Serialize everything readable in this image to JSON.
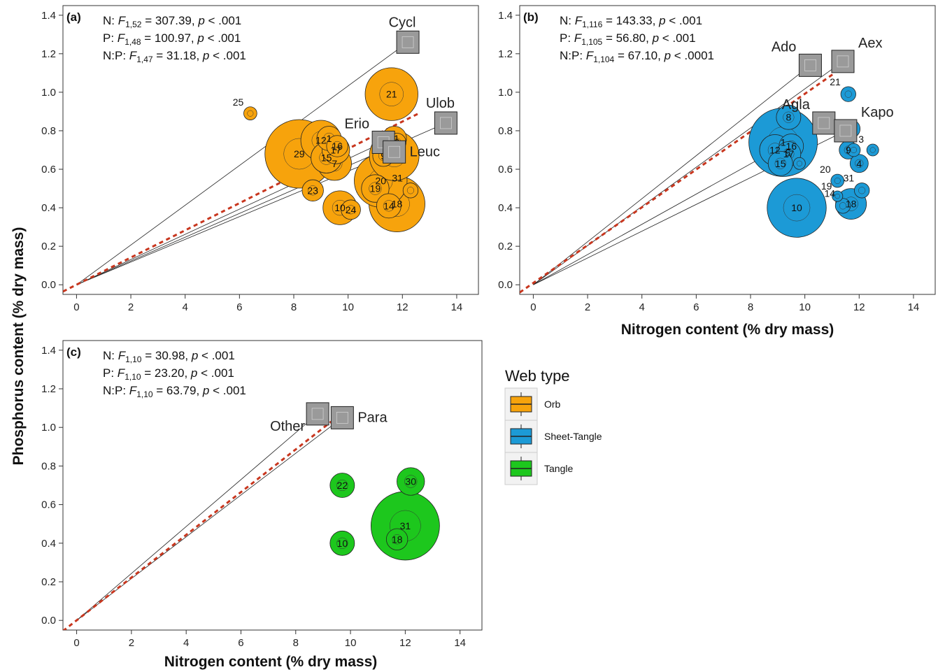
{
  "colors": {
    "orb": "#F7A30C",
    "sheet_tangle": "#1C9AD6",
    "tangle": "#1DC71D",
    "stoich_line": "#C8361E",
    "taxon_box": "#9A9A9A",
    "stroke": "#222222"
  },
  "axis_titles": {
    "y": "Phosphorus content (% dry mass)",
    "x": "Nitrogen content (% dry mass)"
  },
  "legend": {
    "title": "Web type",
    "items": [
      {
        "label": "Orb",
        "color_key": "orb"
      },
      {
        "label": "Sheet-Tangle",
        "color_key": "sheet_tangle"
      },
      {
        "label": "Tangle",
        "color_key": "tangle"
      }
    ]
  },
  "chart_data": [
    {
      "panel": "(a)",
      "type": "scatter",
      "web_type": "Orb",
      "color_key": "orb",
      "xlabel": "",
      "ylabel": "Phosphorus content (% dry mass)",
      "xlim": [
        -0.5,
        14.8
      ],
      "ylim": [
        -0.05,
        1.45
      ],
      "xticks": [
        0,
        2,
        4,
        6,
        8,
        10,
        12,
        14
      ],
      "yticks": [
        0.0,
        0.2,
        0.4,
        0.6,
        0.8,
        1.0,
        1.2,
        1.4
      ],
      "stats": [
        {
          "prefix": "N: ",
          "df": "1,52",
          "value": "307.39",
          "p": "< .001"
        },
        {
          "prefix": "P: ",
          "df": "1,48",
          "value": "100.97",
          "p": "< .001"
        },
        {
          "prefix": "N:P: ",
          "df": "1,47",
          "value": "31.18",
          "p": "< .001"
        }
      ],
      "stoich_line": {
        "x": [
          -0.5,
          12.6
        ],
        "y": [
          -0.035,
          0.89
        ]
      },
      "taxa": [
        {
          "label": "Cycl",
          "x": 12.2,
          "y": 1.26,
          "label_pos": "above"
        },
        {
          "label": "Ulob",
          "x": 13.6,
          "y": 0.84,
          "label_pos": "above"
        },
        {
          "label": "Erio",
          "x": 11.3,
          "y": 0.74,
          "label_pos": "above-left"
        },
        {
          "label": "Leuc",
          "x": 11.7,
          "y": 0.69,
          "label_pos": "right"
        }
      ],
      "points": [
        {
          "id": "25",
          "x": 6.4,
          "y": 0.89,
          "size": 0.12
        },
        {
          "id": "21",
          "x": 11.6,
          "y": 0.99,
          "size": 0.75
        },
        {
          "id": "29",
          "x": 8.2,
          "y": 0.68,
          "size": 1.0
        },
        {
          "id": "12",
          "x": 9.0,
          "y": 0.75,
          "size": 0.55
        },
        {
          "id": "1",
          "x": 9.3,
          "y": 0.76,
          "size": 0.3
        },
        {
          "id": "16",
          "x": 9.6,
          "y": 0.72,
          "size": 0.25
        },
        {
          "id": "17",
          "x": 9.55,
          "y": 0.7,
          "size": 0.35
        },
        {
          "id": "15",
          "x": 9.2,
          "y": 0.66,
          "size": 0.4
        },
        {
          "id": "7",
          "x": 9.5,
          "y": 0.63,
          "size": 0.45
        },
        {
          "id": "11",
          "x": 11.7,
          "y": 0.76,
          "size": 0.3
        },
        {
          "id": "3",
          "x": 11.8,
          "y": 0.74,
          "size": 0.2
        },
        {
          "id": "9",
          "x": 11.3,
          "y": 0.67,
          "size": 0.25
        },
        {
          "id": "4",
          "x": 11.7,
          "y": 0.67,
          "size": 0.7
        },
        {
          "id": "20",
          "x": 11.2,
          "y": 0.54,
          "size": 0.75
        },
        {
          "id": "19",
          "x": 11.0,
          "y": 0.5,
          "size": 0.35
        },
        {
          "id": "31",
          "x": 12.3,
          "y": 0.49,
          "size": 0.15
        },
        {
          "id": "23",
          "x": 8.7,
          "y": 0.49,
          "size": 0.25
        },
        {
          "id": "10",
          "x": 9.7,
          "y": 0.4,
          "size": 0.45
        },
        {
          "id": "24",
          "x": 10.1,
          "y": 0.39,
          "size": 0.22
        },
        {
          "id": "14",
          "x": 11.5,
          "y": 0.41,
          "size": 0.3
        },
        {
          "id": "18",
          "x": 11.8,
          "y": 0.42,
          "size": 0.8
        }
      ]
    },
    {
      "panel": "(b)",
      "type": "scatter",
      "web_type": "Sheet-Tangle",
      "color_key": "sheet_tangle",
      "xlabel": "Nitrogen content (% dry mass)",
      "ylabel": "",
      "xlim": [
        -0.5,
        14.8
      ],
      "ylim": [
        -0.05,
        1.45
      ],
      "xticks": [
        0,
        2,
        4,
        6,
        8,
        10,
        12,
        14
      ],
      "yticks": [
        0.0,
        0.2,
        0.4,
        0.6,
        0.8,
        1.0,
        1.2,
        1.4
      ],
      "stats": [
        {
          "prefix": "N: ",
          "df": "1,116",
          "value": "143.33",
          "p": "< .001"
        },
        {
          "prefix": "P: ",
          "df": "1,105",
          "value": "56.80",
          "p": "< .001"
        },
        {
          "prefix": "N:P: ",
          "df": "1,104",
          "value": "67.10",
          "p": "< .0001"
        }
      ],
      "stoich_line": {
        "x": [
          -0.5,
          11.1
        ],
        "y": [
          -0.04,
          1.1
        ]
      },
      "taxa": [
        {
          "label": "Ado",
          "x": 10.2,
          "y": 1.14,
          "label_pos": "above-left"
        },
        {
          "label": "Aex",
          "x": 11.4,
          "y": 1.16,
          "label_pos": "above-right"
        },
        {
          "label": "Agla",
          "x": 10.7,
          "y": 0.84,
          "label_pos": "above-left"
        },
        {
          "label": "Kapo",
          "x": 11.5,
          "y": 0.8,
          "label_pos": "above-right"
        }
      ],
      "points": [
        {
          "id": "21",
          "x": 11.6,
          "y": 0.99,
          "size": 0.15
        },
        {
          "id": "8",
          "x": 9.4,
          "y": 0.87,
          "size": 0.3
        },
        {
          "id": "1",
          "x": 9.2,
          "y": 0.74,
          "size": 1.0
        },
        {
          "id": "12",
          "x": 8.9,
          "y": 0.7,
          "size": 0.4
        },
        {
          "id": "16",
          "x": 9.5,
          "y": 0.72,
          "size": 0.3
        },
        {
          "id": "17",
          "x": 9.4,
          "y": 0.68,
          "size": 0.3
        },
        {
          "id": "15",
          "x": 9.1,
          "y": 0.63,
          "size": 0.3
        },
        {
          "id": "5",
          "x": 9.8,
          "y": 0.63,
          "size": 0.1
        },
        {
          "id": "6",
          "x": 11.7,
          "y": 0.81,
          "size": 0.2
        },
        {
          "id": "9",
          "x": 11.6,
          "y": 0.7,
          "size": 0.2
        },
        {
          "id": "11",
          "x": 11.8,
          "y": 0.7,
          "size": 0.12
        },
        {
          "id": "3",
          "x": 12.5,
          "y": 0.7,
          "size": 0.1
        },
        {
          "id": "4",
          "x": 12.0,
          "y": 0.63,
          "size": 0.2
        },
        {
          "id": "20",
          "x": 11.2,
          "y": 0.54,
          "size": 0.12
        },
        {
          "id": "19",
          "x": 11.2,
          "y": 0.46,
          "size": 0.08
        },
        {
          "id": "31",
          "x": 12.1,
          "y": 0.49,
          "size": 0.15
        },
        {
          "id": "10",
          "x": 9.7,
          "y": 0.4,
          "size": 0.85
        },
        {
          "id": "14",
          "x": 11.4,
          "y": 0.41,
          "size": 0.15
        },
        {
          "id": "18",
          "x": 11.7,
          "y": 0.42,
          "size": 0.4
        }
      ]
    },
    {
      "panel": "(c)",
      "type": "scatter",
      "web_type": "Tangle",
      "color_key": "tangle",
      "xlabel": "Nitrogen content (% dry mass)",
      "ylabel": "",
      "xlim": [
        -0.5,
        14.8
      ],
      "ylim": [
        -0.05,
        1.45
      ],
      "xticks": [
        0,
        2,
        4,
        6,
        8,
        10,
        12,
        14
      ],
      "yticks": [
        0.0,
        0.2,
        0.4,
        0.6,
        0.8,
        1.0,
        1.2,
        1.4
      ],
      "stats": [
        {
          "prefix": "N: ",
          "df": "1,10",
          "value": "30.98",
          "p": "< .001"
        },
        {
          "prefix": "P: ",
          "df": "1,10",
          "value": "23.20",
          "p": "< .001"
        },
        {
          "prefix": "N:P: ",
          "df": "1,10",
          "value": "63.79",
          "p": "< .001"
        }
      ],
      "stoich_line": {
        "x": [
          -0.5,
          9.3
        ],
        "y": [
          -0.055,
          1.03
        ]
      },
      "taxa": [
        {
          "label": "Other",
          "x": 8.8,
          "y": 1.07,
          "label_pos": "below-left"
        },
        {
          "label": "Para",
          "x": 9.7,
          "y": 1.05,
          "label_pos": "right"
        }
      ],
      "points": [
        {
          "id": "22",
          "x": 9.7,
          "y": 0.7,
          "size": 0.3
        },
        {
          "id": "30",
          "x": 12.2,
          "y": 0.72,
          "size": 0.35
        },
        {
          "id": "10",
          "x": 9.7,
          "y": 0.4,
          "size": 0.3
        },
        {
          "id": "18",
          "x": 11.7,
          "y": 0.42,
          "size": 0.25
        },
        {
          "id": "31",
          "x": 12.0,
          "y": 0.49,
          "size": 1.0
        }
      ]
    }
  ]
}
